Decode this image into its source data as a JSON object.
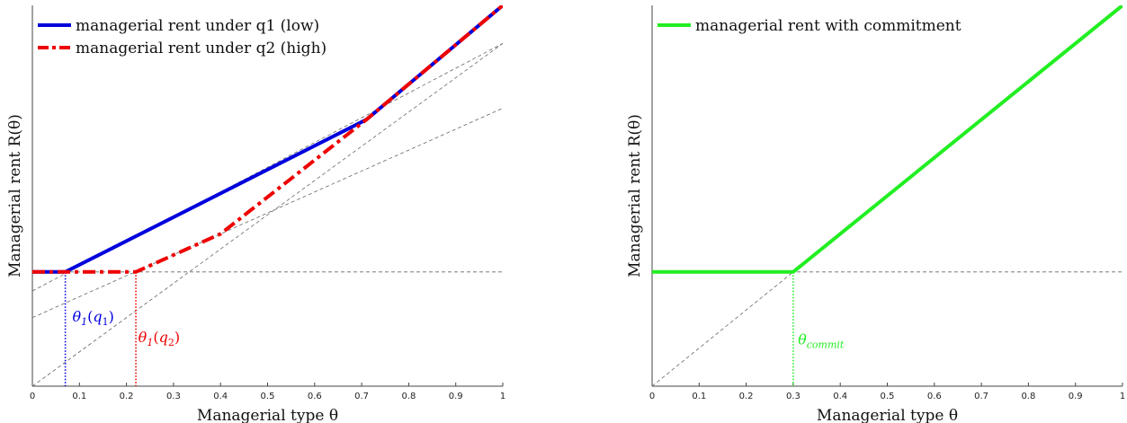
{
  "chart_data": [
    {
      "type": "line",
      "xlabel": "Managerial type θ",
      "ylabel": "Managerial rent R(θ)",
      "xlim": [
        0,
        1
      ],
      "ylim": [
        0,
        1
      ],
      "xticks": [
        "0",
        "0.1",
        "0.2",
        "0.3",
        "0.4",
        "0.5",
        "0.6",
        "0.7",
        "0.8",
        "0.9",
        "1"
      ],
      "grid": false,
      "legend": "top-left",
      "series": [
        {
          "name": "managerial rent under q1 (low)",
          "color": "#0000dd",
          "style": "solid",
          "x": [
            0,
            0.07,
            0.71,
            1
          ],
          "y": [
            0.3,
            0.3,
            0.7,
            1.0
          ]
        },
        {
          "name": "managerial rent under q2 (high)",
          "color": "#ee0000",
          "style": "dashdot",
          "x": [
            0,
            0.22,
            0.4,
            0.71,
            1
          ],
          "y": [
            0.3,
            0.3,
            0.4,
            0.7,
            1.0
          ]
        }
      ],
      "reference_lines": [
        {
          "x": [
            0,
            1
          ],
          "y": [
            0.3,
            0.3
          ]
        },
        {
          "x": [
            0,
            1
          ],
          "y": [
            0.25,
            0.9
          ]
        },
        {
          "x": [
            0,
            1
          ],
          "y": [
            0.18,
            0.73
          ]
        },
        {
          "x": [
            0,
            1
          ],
          "y": [
            0.0,
            0.9
          ]
        }
      ],
      "markers": [
        {
          "x": 0.07,
          "y": 0.3,
          "color": "#0000dd"
        },
        {
          "x": 0.22,
          "y": 0.3,
          "color": "#ee0000"
        }
      ],
      "annotations": [
        {
          "text_base": "θ",
          "sub": "1",
          "paren": "(q",
          "sub2": "1",
          "close": ")",
          "color": "#0000dd",
          "x": 0.085,
          "y": 0.17
        },
        {
          "text_base": "θ",
          "sub": "1",
          "paren": "(q",
          "sub2": "2",
          "close": ")",
          "color": "#ee0000",
          "x": 0.225,
          "y": 0.115
        }
      ]
    },
    {
      "type": "line",
      "xlabel": "Managerial type θ",
      "ylabel": "Managerial rent R(θ)",
      "xlim": [
        0,
        1
      ],
      "ylim": [
        0,
        1
      ],
      "xticks": [
        "0",
        "0.1",
        "0.2",
        "0.3",
        "0.4",
        "0.5",
        "0.6",
        "0.7",
        "0.8",
        "0.9",
        "1"
      ],
      "grid": false,
      "legend": "top-left",
      "series": [
        {
          "name": "managerial rent with commitment",
          "color": "#22ee22",
          "style": "solid",
          "x": [
            0,
            0.3,
            1
          ],
          "y": [
            0.3,
            0.3,
            1.0
          ]
        }
      ],
      "reference_lines": [
        {
          "x": [
            0,
            1
          ],
          "y": [
            0.3,
            0.3
          ]
        },
        {
          "x": [
            0,
            0.3
          ],
          "y": [
            0.0,
            0.3
          ]
        }
      ],
      "markers": [
        {
          "x": 0.3,
          "y": 0.3,
          "color": "#22ee22"
        }
      ],
      "annotations": [
        {
          "text_base": "θ",
          "sub": "commit",
          "color": "#22ee22",
          "x": 0.31,
          "y": 0.11
        }
      ]
    }
  ]
}
